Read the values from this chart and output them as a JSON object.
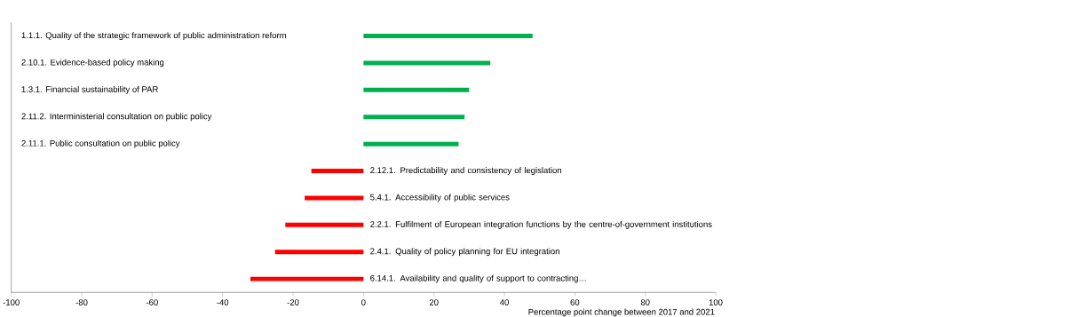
{
  "chart_data": {
    "type": "bar",
    "orientation": "horizontal",
    "categories": [
      "1.1.1. Quality of the strategic framework of public administration reform",
      "2.10.1. Evidence-based policy making",
      "1.3.1. Financial sustainability of PAR",
      "2.11.2. Interministerial consultation on public policy",
      "2.11.1. Public consultation on public policy",
      "2.12.1. Predictability and consistency of legislation",
      "5.4.1. Accessibility of public services",
      "2.2.1. Fulfilment of European integration functions by the centre-of-government institutions",
      "2.4.1. Quality of policy planning for EU integration",
      "6.14.1. Availability and quality of support to contracting…"
    ],
    "values": [
      48,
      36,
      30,
      28.7,
      27,
      -14.8,
      -16.7,
      -22.2,
      -25.1,
      -32.1
    ],
    "colors": [
      "#00b050",
      "#00b050",
      "#00b050",
      "#00b050",
      "#00b050",
      "#ff0000",
      "#ff0000",
      "#ff0000",
      "#ff0000",
      "#ff0000"
    ],
    "xlim": [
      -100,
      100
    ],
    "xticks": [
      -100,
      -80,
      -60,
      -40,
      -20,
      0,
      20,
      40,
      60,
      80,
      100
    ],
    "xlabel": "Percentage point change between 2017 and 2021"
  }
}
